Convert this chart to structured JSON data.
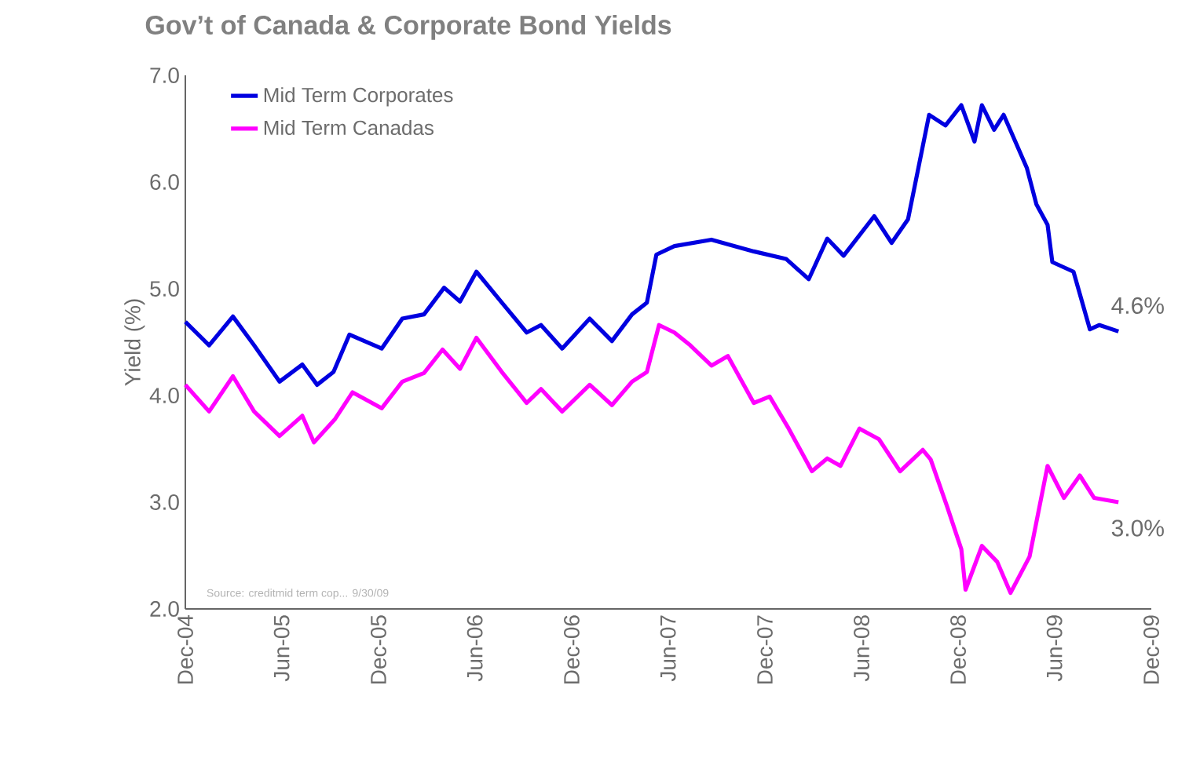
{
  "chart_data": {
    "type": "line",
    "title": "Gov’t of Canada & Corporate Bond Yields",
    "ylabel": "Yield (%)",
    "xlim": [
      "2004-12",
      "2009-12"
    ],
    "xticks": [
      {
        "value": "2004-12",
        "label": "Dec-04"
      },
      {
        "value": "2005-06",
        "label": "Jun-05"
      },
      {
        "value": "2005-12",
        "label": "Dec-05"
      },
      {
        "value": "2006-06",
        "label": "Jun-06"
      },
      {
        "value": "2006-12",
        "label": "Dec-06"
      },
      {
        "value": "2007-06",
        "label": "Jun-07"
      },
      {
        "value": "2007-12",
        "label": "Dec-07"
      },
      {
        "value": "2008-06",
        "label": "Jun-08"
      },
      {
        "value": "2008-12",
        "label": "Dec-08"
      },
      {
        "value": "2009-06",
        "label": "Jun-09"
      },
      {
        "value": "2009-12",
        "label": "Dec-09"
      }
    ],
    "ylim": [
      2,
      7
    ],
    "yticks": [
      {
        "value": 2,
        "label": "2.0"
      },
      {
        "value": 3,
        "label": "3.0"
      },
      {
        "value": 4,
        "label": "4.0"
      },
      {
        "value": 5,
        "label": "5.0"
      },
      {
        "value": 6,
        "label": "6.0"
      },
      {
        "value": 7,
        "label": "7.0"
      }
    ],
    "legend": "top left",
    "grid": false,
    "series": [
      {
        "name": "Mid Term Corporates",
        "color": "#0000e0",
        "x": [
          "2004-12-01",
          "2005-01-15",
          "2005-03-01",
          "2005-04-10",
          "2005-05-28",
          "2005-07-10",
          "2005-08-07",
          "2005-09-07",
          "2005-10-07",
          "2005-12-07",
          "2006-01-15",
          "2006-02-25",
          "2006-04-04",
          "2006-05-04",
          "2006-06-04",
          "2006-07-22",
          "2006-09-07",
          "2006-10-04",
          "2006-11-13",
          "2007-01-04",
          "2007-02-15",
          "2007-03-25",
          "2007-04-22",
          "2007-05-10",
          "2007-06-13",
          "2007-08-22",
          "2007-11-10",
          "2008-01-10",
          "2008-02-22",
          "2008-03-28",
          "2008-04-28",
          "2008-06-25",
          "2008-07-28",
          "2008-08-28",
          "2008-10-07",
          "2008-11-07",
          "2008-12-07",
          "2009-01-01",
          "2009-01-15",
          "2009-02-07",
          "2009-02-25",
          "2009-04-10",
          "2009-04-28",
          "2009-05-19",
          "2009-05-28",
          "2009-07-07",
          "2009-08-07",
          "2009-08-25",
          "2009-09-30"
        ],
        "values": [
          4.69,
          4.47,
          4.74,
          4.47,
          4.13,
          4.29,
          4.1,
          4.22,
          4.57,
          4.44,
          4.72,
          4.76,
          5.01,
          4.88,
          5.16,
          4.87,
          4.59,
          4.66,
          4.44,
          4.72,
          4.51,
          4.76,
          4.87,
          5.32,
          5.4,
          5.46,
          5.35,
          5.28,
          5.09,
          5.47,
          5.31,
          5.68,
          5.43,
          5.65,
          6.63,
          6.53,
          6.72,
          6.38,
          6.72,
          6.49,
          6.63,
          6.13,
          5.79,
          5.6,
          5.25,
          5.16,
          4.62,
          4.66,
          4.6
        ]
      },
      {
        "name": "Mid Term Canadas",
        "color": "#ff00ff",
        "x": [
          "2004-12-01",
          "2005-01-15",
          "2005-03-01",
          "2005-04-10",
          "2005-05-28",
          "2005-07-10",
          "2005-08-01",
          "2005-09-10",
          "2005-10-13",
          "2005-12-07",
          "2006-01-15",
          "2006-02-25",
          "2006-04-01",
          "2006-05-04",
          "2006-06-04",
          "2006-07-22",
          "2006-09-07",
          "2006-10-04",
          "2006-11-13",
          "2007-01-04",
          "2007-02-15",
          "2007-03-25",
          "2007-04-22",
          "2007-05-15",
          "2007-06-13",
          "2007-07-13",
          "2007-08-22",
          "2007-09-22",
          "2007-11-10",
          "2007-12-10",
          "2008-01-15",
          "2008-02-28",
          "2008-03-28",
          "2008-04-22",
          "2008-05-28",
          "2008-07-04",
          "2008-08-13",
          "2008-09-25",
          "2008-10-10",
          "2008-11-10",
          "2008-12-07",
          "2008-12-15",
          "2009-01-15",
          "2009-02-13",
          "2009-03-10",
          "2009-04-15",
          "2009-05-19",
          "2009-06-19",
          "2009-07-19",
          "2009-08-15",
          "2009-09-30"
        ],
        "values": [
          4.1,
          3.85,
          4.18,
          3.85,
          3.62,
          3.81,
          3.56,
          3.78,
          4.03,
          3.88,
          4.13,
          4.21,
          4.43,
          4.25,
          4.54,
          4.22,
          3.93,
          4.06,
          3.85,
          4.1,
          3.91,
          4.13,
          4.22,
          4.66,
          4.59,
          4.47,
          4.28,
          4.37,
          3.93,
          3.99,
          3.69,
          3.29,
          3.41,
          3.34,
          3.69,
          3.59,
          3.29,
          3.49,
          3.4,
          2.96,
          2.56,
          2.18,
          2.59,
          2.44,
          2.15,
          2.49,
          3.34,
          3.04,
          3.25,
          3.04,
          3.0
        ]
      }
    ],
    "annotations": [
      {
        "text": "4.6%",
        "x": "2009-09-30",
        "y": 4.6
      },
      {
        "text": "3.0%",
        "x": "2009-09-30",
        "y": 3.0
      },
      "Source: creditmid term cop... 9/30/09"
    ]
  }
}
